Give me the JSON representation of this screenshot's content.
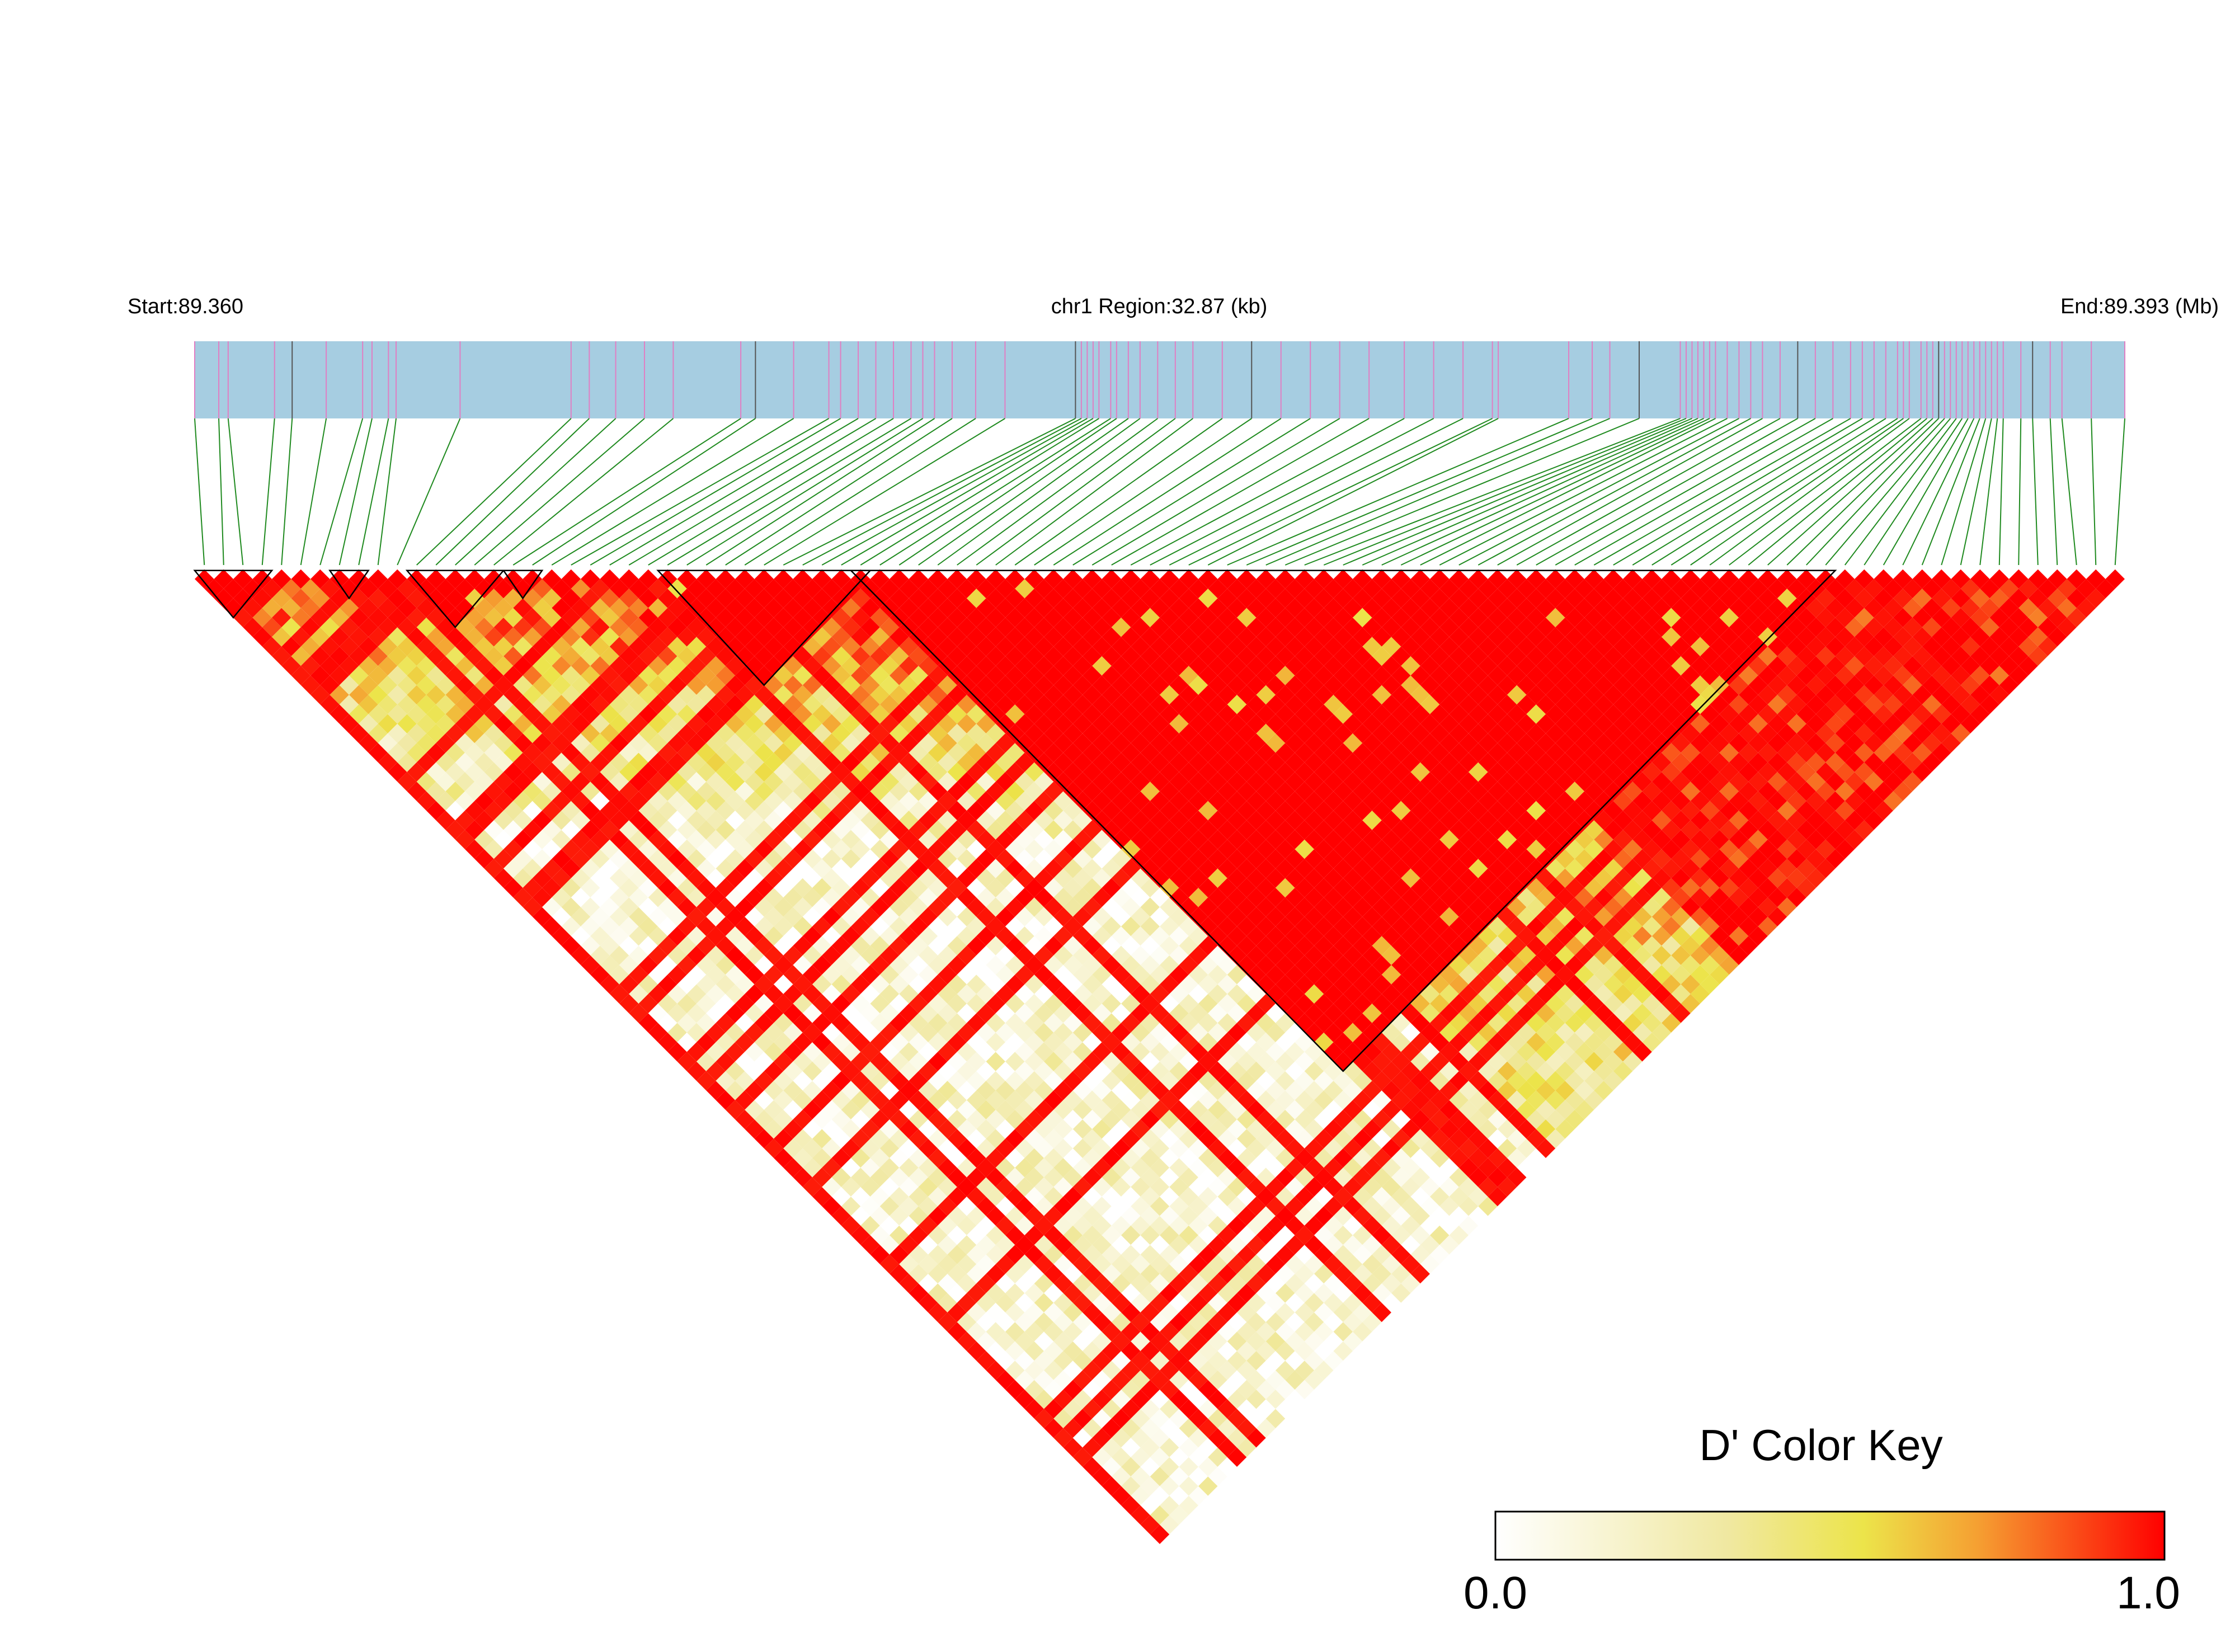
{
  "chart_data": {
    "type": "heatmap",
    "title": "",
    "region": {
      "start_label": "Start:89.360",
      "end_label": "End:89.393 (Mb)",
      "center_label": "chr1 Region:32.87 (kb)",
      "start_mb": 89.36,
      "end_mb": 89.393,
      "length_kb": 32.87
    },
    "snp_count": 100,
    "snp_positions_kb": [
      0.0,
      0.41,
      0.57,
      1.36,
      1.66,
      2.24,
      2.86,
      3.02,
      3.3,
      3.43,
      4.52,
      6.41,
      6.72,
      7.17,
      7.66,
      8.15,
      9.3,
      9.55,
      10.2,
      10.8,
      11.0,
      11.3,
      11.6,
      11.9,
      12.2,
      12.4,
      12.6,
      12.9,
      13.3,
      13.8,
      15.0,
      15.1,
      15.2,
      15.3,
      15.4,
      15.6,
      15.7,
      15.9,
      16.1,
      16.4,
      16.7,
      17.0,
      17.5,
      18.0,
      18.5,
      19.0,
      19.5,
      20.0,
      20.6,
      21.1,
      21.6,
      22.1,
      22.2,
      23.4,
      23.8,
      24.1,
      24.6,
      25.3,
      25.4,
      25.5,
      25.6,
      25.7,
      25.8,
      25.9,
      26.1,
      26.3,
      26.5,
      26.7,
      27.0,
      27.3,
      27.6,
      27.9,
      28.2,
      28.4,
      28.6,
      28.8,
      29.0,
      29.1,
      29.2,
      29.4,
      29.5,
      29.6,
      29.7,
      29.8,
      29.9,
      30.0,
      30.1,
      30.2,
      30.3,
      30.4,
      30.5,
      30.6,
      30.7,
      30.8,
      31.1,
      31.3,
      31.6,
      31.8,
      32.3,
      32.87
    ],
    "ld_blocks": [
      {
        "from_snp": 1,
        "to_snp": 4
      },
      {
        "from_snp": 8,
        "to_snp": 9
      },
      {
        "from_snp": 12,
        "to_snp": 16
      },
      {
        "from_snp": 17,
        "to_snp": 18
      },
      {
        "from_snp": 25,
        "to_snp": 35
      },
      {
        "from_snp": 35,
        "to_snp": 85
      }
    ],
    "color_scale": {
      "title": "D' Color Key",
      "min": 0.0,
      "max": 1.0,
      "min_label": "0.0",
      "max_label": "1.0",
      "stops": [
        "#ffffff",
        "#f0e850",
        "#f5a030",
        "#ff0000"
      ]
    },
    "colors": {
      "gene_track": "#a6cde1",
      "snp_tick": "#e07fc3",
      "snp_tick_alt": "#555555",
      "connector": "#1f8a1f",
      "block_outline": "#000000"
    }
  }
}
